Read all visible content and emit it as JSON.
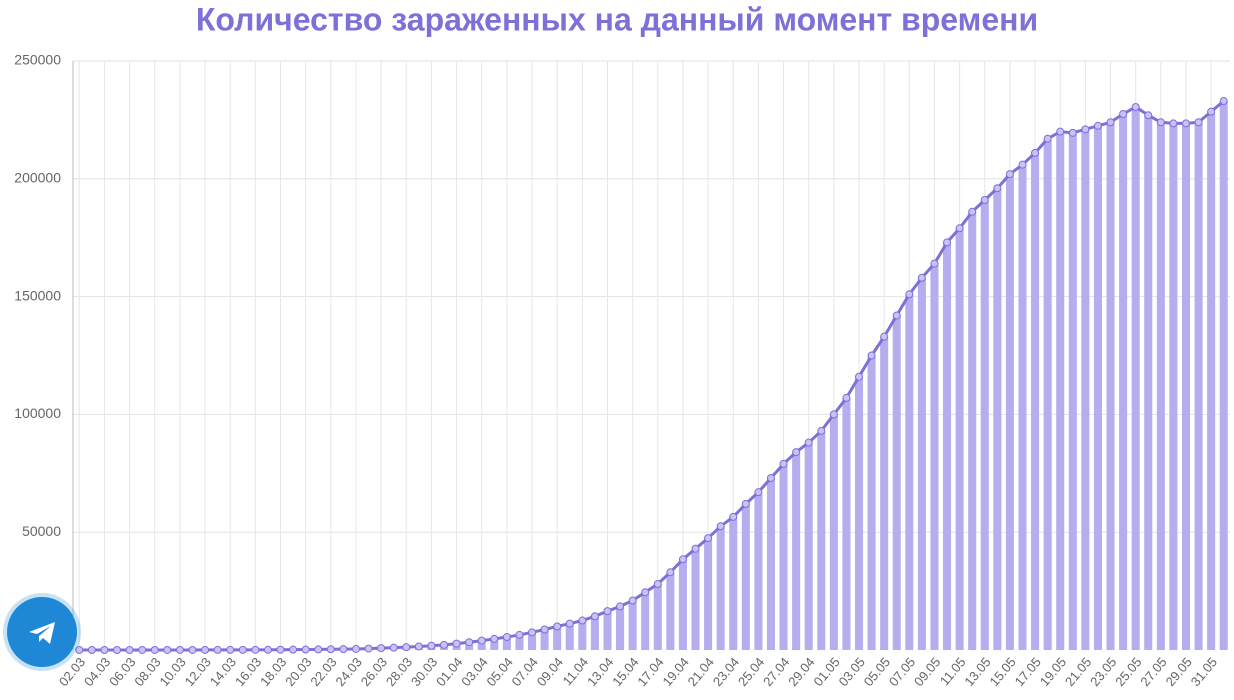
{
  "chart_data": {
    "type": "bar-line",
    "title": "Количество зараженных на данный момент времени",
    "categories": [
      "02.03",
      null,
      "04.03",
      null,
      "06.03",
      null,
      "08.03",
      null,
      "10.03",
      null,
      "12.03",
      null,
      "14.03",
      null,
      "16.03",
      null,
      "18.03",
      null,
      "20.03",
      null,
      "22.03",
      null,
      "24.03",
      null,
      "26.03",
      null,
      "28.03",
      null,
      "30.03",
      null,
      "01.04",
      null,
      "03.04",
      null,
      "05.04",
      null,
      "07.04",
      null,
      "09.04",
      null,
      "11.04",
      null,
      "13.04",
      null,
      "15.04",
      null,
      "17.04",
      null,
      "19.04",
      null,
      "21.04",
      null,
      "23.04",
      null,
      "25.04",
      null,
      "27.04",
      null,
      "29.04",
      null,
      "01.05",
      null,
      "03.05",
      null,
      "05.05",
      null,
      "07.05",
      null,
      "09.05",
      null,
      "11.05",
      null,
      "13.05",
      null,
      "15.05",
      null,
      "17.05",
      null,
      "19.05",
      null,
      "21.05",
      null,
      "23.05",
      null,
      "25.05",
      null,
      "27.05",
      null,
      "29.05",
      null,
      "31.05",
      null
    ],
    "values": [
      3,
      3,
      3,
      3,
      4,
      10,
      14,
      17,
      17,
      20,
      28,
      34,
      45,
      59,
      63,
      90,
      114,
      147,
      199,
      253,
      306,
      367,
      438,
      600,
      800,
      1000,
      1200,
      1500,
      1800,
      2200,
      2700,
      3300,
      4000,
      4700,
      5500,
      6400,
      7500,
      8700,
      10000,
      11200,
      12500,
      14300,
      16500,
      18500,
      21000,
      24500,
      28000,
      33000,
      38500,
      43000,
      47500,
      52500,
      56500,
      62000,
      67000,
      73000,
      79000,
      84000,
      88000,
      93000,
      100000,
      107000,
      116000,
      125000,
      133000,
      142000,
      151000,
      158000,
      164000,
      173000,
      179000,
      186000,
      191000,
      196000,
      202000,
      206000,
      211000,
      217000,
      220000,
      219500,
      221000,
      222500,
      224000,
      227500,
      230500,
      227000,
      224000,
      223500,
      223500,
      224000,
      228500,
      233000
    ],
    "bar_color": "#b4aeee",
    "line_color": "#7d70d8",
    "ylim": [
      0,
      250000
    ],
    "yticks": [
      50000,
      100000,
      150000,
      200000,
      250000
    ],
    "grid": true
  }
}
